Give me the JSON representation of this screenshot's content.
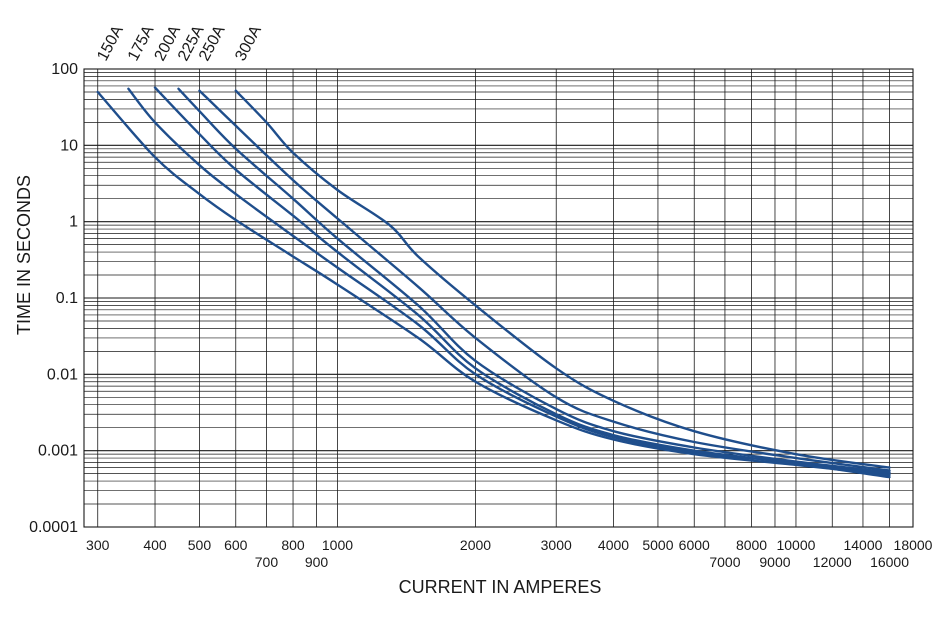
{
  "chart_data": {
    "type": "line",
    "title": "",
    "xlabel": "CURRENT IN AMPERES",
    "ylabel": "TIME IN SECONDS",
    "x_scale": "log",
    "y_scale": "log",
    "xlim": [
      280,
      18000
    ],
    "ylim": [
      0.0001,
      100
    ],
    "grid": true,
    "line_color": "#1f4e8c",
    "grid_color": "#1a1a1a",
    "y_tick_labels": [
      "100",
      "10",
      "1",
      "0.1",
      "0.01",
      "0.001",
      "0.0001"
    ],
    "y_tick_values": [
      100,
      10,
      1,
      0.1,
      0.01,
      0.001,
      0.0001
    ],
    "x_tick_labels_upper": [
      "300",
      "400",
      "500",
      "600",
      "800",
      "1000",
      "2000",
      "3000",
      "4000",
      "5000",
      "6000",
      "8000",
      "10000",
      "14000",
      "18000"
    ],
    "x_tick_values_upper": [
      300,
      400,
      500,
      600,
      800,
      1000,
      2000,
      3000,
      4000,
      5000,
      6000,
      8000,
      10000,
      14000,
      18000
    ],
    "x_tick_labels_lower": [
      "700",
      "900",
      "7000",
      "9000",
      "12000",
      "16000"
    ],
    "x_tick_values_lower": [
      700,
      900,
      7000,
      9000,
      12000,
      16000
    ],
    "series": [
      {
        "name": "150A",
        "points": [
          [
            300,
            50
          ],
          [
            400,
            7
          ],
          [
            500,
            2.3
          ],
          [
            600,
            1.05
          ],
          [
            800,
            0.35
          ],
          [
            1000,
            0.15
          ],
          [
            1500,
            0.03
          ],
          [
            2000,
            0.008
          ],
          [
            3000,
            0.0025
          ],
          [
            4000,
            0.0014
          ],
          [
            6000,
            0.0009
          ],
          [
            10000,
            0.00065
          ],
          [
            16000,
            0.00048
          ]
        ]
      },
      {
        "name": "175A",
        "points": [
          [
            350,
            55
          ],
          [
            400,
            20
          ],
          [
            500,
            5.5
          ],
          [
            600,
            2.3
          ],
          [
            800,
            0.65
          ],
          [
            1000,
            0.25
          ],
          [
            1500,
            0.045
          ],
          [
            2000,
            0.01
          ],
          [
            3000,
            0.0028
          ],
          [
            4000,
            0.0015
          ],
          [
            6000,
            0.00095
          ],
          [
            10000,
            0.0007
          ],
          [
            16000,
            0.0005
          ]
        ]
      },
      {
        "name": "200A",
        "points": [
          [
            400,
            57
          ],
          [
            500,
            14
          ],
          [
            600,
            4.8
          ],
          [
            800,
            1.2
          ],
          [
            1000,
            0.4
          ],
          [
            1500,
            0.06
          ],
          [
            2000,
            0.012
          ],
          [
            3000,
            0.003
          ],
          [
            4000,
            0.0016
          ],
          [
            6000,
            0.001
          ],
          [
            10000,
            0.00068
          ],
          [
            16000,
            0.00045
          ]
        ]
      },
      {
        "name": "225A",
        "points": [
          [
            450,
            55
          ],
          [
            500,
            28
          ],
          [
            600,
            9
          ],
          [
            800,
            2
          ],
          [
            1000,
            0.6
          ],
          [
            1500,
            0.08
          ],
          [
            2000,
            0.015
          ],
          [
            3000,
            0.0035
          ],
          [
            4000,
            0.0018
          ],
          [
            6000,
            0.0011
          ],
          [
            10000,
            0.00072
          ],
          [
            16000,
            0.00052
          ]
        ]
      },
      {
        "name": "250A",
        "points": [
          [
            500,
            52
          ],
          [
            600,
            18
          ],
          [
            800,
            3.5
          ],
          [
            1000,
            1.1
          ],
          [
            1500,
            0.14
          ],
          [
            2000,
            0.03
          ],
          [
            3000,
            0.005
          ],
          [
            4000,
            0.0024
          ],
          [
            6000,
            0.0013
          ],
          [
            10000,
            0.0008
          ],
          [
            16000,
            0.00055
          ]
        ]
      },
      {
        "name": "300A",
        "points": [
          [
            600,
            52
          ],
          [
            700,
            20
          ],
          [
            800,
            8
          ],
          [
            1000,
            2.6
          ],
          [
            1300,
            0.9
          ],
          [
            1500,
            0.35
          ],
          [
            2000,
            0.08
          ],
          [
            3000,
            0.012
          ],
          [
            4000,
            0.0045
          ],
          [
            6000,
            0.0018
          ],
          [
            10000,
            0.0009
          ],
          [
            16000,
            0.0006
          ]
        ]
      }
    ]
  }
}
